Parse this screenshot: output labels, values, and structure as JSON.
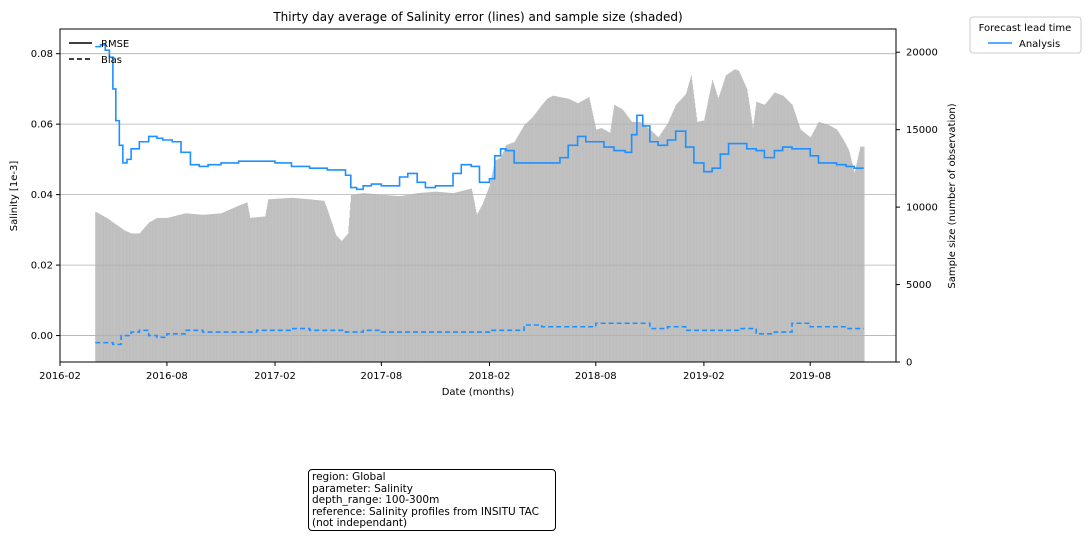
{
  "chart_data": {
    "type": "line",
    "title": "Thirty day average of Salinity error (lines) and sample size (shaded)",
    "xlabel": "Date (months)",
    "ylabel": "Salinity [1e-3]",
    "y2label": "Sample size (number of observation)",
    "xlim": [
      "2016-02-01",
      "2019-12-25"
    ],
    "ylim": [
      -0.0075,
      0.087
    ],
    "y2lim": [
      0,
      21500
    ],
    "x_ticks": [
      "2016-02",
      "2016-08",
      "2017-02",
      "2017-08",
      "2018-02",
      "2018-08",
      "2019-02",
      "2019-08"
    ],
    "y_ticks": [
      "0.00",
      "0.02",
      "0.04",
      "0.06",
      "0.08"
    ],
    "y2_ticks": [
      "0",
      "5000",
      "10000",
      "15000",
      "20000"
    ],
    "grid": true,
    "legend_style": {
      "position": "upper-left",
      "entries": [
        {
          "label": "RMSE",
          "linestyle": "solid",
          "color": "#000000"
        },
        {
          "label": "Bias",
          "linestyle": "dashed",
          "color": "#000000"
        }
      ]
    },
    "legend_lead": {
      "position": "outside-top-right",
      "title": "Forecast lead time",
      "entries": [
        {
          "label": "Analysis",
          "color": "#1e90ff"
        }
      ]
    },
    "series": [
      {
        "name": "RMSE",
        "color": "#1e90ff",
        "style": "solid",
        "x": [
          "2016-04-01",
          "2016-04-10",
          "2016-04-18",
          "2016-04-25",
          "2016-05-01",
          "2016-05-06",
          "2016-05-12",
          "2016-05-18",
          "2016-05-25",
          "2016-06-01",
          "2016-06-15",
          "2016-07-01",
          "2016-07-15",
          "2016-07-25",
          "2016-08-10",
          "2016-08-25",
          "2016-09-10",
          "2016-09-25",
          "2016-10-10",
          "2016-11-01",
          "2016-12-01",
          "2017-01-01",
          "2017-02-01",
          "2017-03-01",
          "2017-04-01",
          "2017-05-01",
          "2017-05-20",
          "2017-06-01",
          "2017-06-10",
          "2017-06-20",
          "2017-07-01",
          "2017-07-15",
          "2017-08-01",
          "2017-08-15",
          "2017-09-01",
          "2017-09-15",
          "2017-10-01",
          "2017-10-15",
          "2017-11-01",
          "2017-11-15",
          "2017-12-01",
          "2017-12-15",
          "2018-01-01",
          "2018-01-15",
          "2018-01-25",
          "2018-02-01",
          "2018-02-10",
          "2018-02-20",
          "2018-03-01",
          "2018-03-15",
          "2018-04-01",
          "2018-05-01",
          "2018-06-01",
          "2018-06-15",
          "2018-07-01",
          "2018-07-15",
          "2018-08-01",
          "2018-08-15",
          "2018-09-01",
          "2018-09-20",
          "2018-10-01",
          "2018-10-10",
          "2018-10-20",
          "2018-11-01",
          "2018-11-15",
          "2018-12-01",
          "2018-12-15",
          "2019-01-01",
          "2019-01-15",
          "2019-02-01",
          "2019-02-15",
          "2019-03-01",
          "2019-03-15",
          "2019-04-01",
          "2019-04-15",
          "2019-05-01",
          "2019-05-15",
          "2019-06-01",
          "2019-06-15",
          "2019-07-01",
          "2019-07-15",
          "2019-08-01",
          "2019-08-15",
          "2019-09-01",
          "2019-09-15",
          "2019-10-01",
          "2019-10-15",
          "2019-10-31"
        ],
        "values": [
          0.082,
          0.0825,
          0.081,
          0.079,
          0.07,
          0.061,
          0.054,
          0.049,
          0.05,
          0.053,
          0.055,
          0.0565,
          0.056,
          0.0555,
          0.055,
          0.052,
          0.0485,
          0.048,
          0.0485,
          0.049,
          0.0495,
          0.0495,
          0.049,
          0.048,
          0.0475,
          0.047,
          0.047,
          0.0455,
          0.042,
          0.0415,
          0.0425,
          0.043,
          0.0425,
          0.0425,
          0.045,
          0.046,
          0.0435,
          0.042,
          0.0425,
          0.0425,
          0.046,
          0.0485,
          0.048,
          0.0435,
          0.0435,
          0.0445,
          0.051,
          0.053,
          0.0525,
          0.049,
          0.049,
          0.049,
          0.0505,
          0.054,
          0.0565,
          0.055,
          0.055,
          0.0535,
          0.0525,
          0.052,
          0.057,
          0.0625,
          0.0595,
          0.055,
          0.054,
          0.0555,
          0.058,
          0.0535,
          0.049,
          0.0465,
          0.0475,
          0.0515,
          0.0545,
          0.0545,
          0.053,
          0.0525,
          0.0505,
          0.0525,
          0.0535,
          0.053,
          0.053,
          0.051,
          0.049,
          0.049,
          0.0485,
          0.048,
          0.0475,
          0.0475
        ]
      },
      {
        "name": "Bias",
        "color": "#1e90ff",
        "style": "dashed",
        "x": [
          "2016-04-01",
          "2016-05-01",
          "2016-05-15",
          "2016-06-01",
          "2016-06-15",
          "2016-07-01",
          "2016-07-15",
          "2016-08-01",
          "2016-09-01",
          "2016-10-01",
          "2016-11-01",
          "2016-12-01",
          "2017-01-01",
          "2017-02-01",
          "2017-03-01",
          "2017-04-01",
          "2017-05-01",
          "2017-06-01",
          "2017-07-01",
          "2017-08-01",
          "2017-09-01",
          "2017-10-01",
          "2017-11-01",
          "2017-12-01",
          "2018-01-01",
          "2018-02-01",
          "2018-03-01",
          "2018-04-01",
          "2018-05-01",
          "2018-06-01",
          "2018-07-01",
          "2018-08-01",
          "2018-09-01",
          "2018-10-01",
          "2018-11-01",
          "2018-12-01",
          "2019-01-01",
          "2019-02-01",
          "2019-03-01",
          "2019-04-01",
          "2019-05-01",
          "2019-06-01",
          "2019-07-01",
          "2019-08-01",
          "2019-09-01",
          "2019-10-01",
          "2019-10-31"
        ],
        "values": [
          -0.002,
          -0.0025,
          0.0,
          0.001,
          0.0015,
          0.0,
          -0.0005,
          0.0005,
          0.0015,
          0.001,
          0.001,
          0.001,
          0.0015,
          0.0015,
          0.002,
          0.0015,
          0.0015,
          0.001,
          0.0015,
          0.001,
          0.001,
          0.001,
          0.001,
          0.001,
          0.001,
          0.0015,
          0.0015,
          0.003,
          0.0025,
          0.0025,
          0.0025,
          0.0035,
          0.0035,
          0.0035,
          0.002,
          0.0025,
          0.0015,
          0.0015,
          0.0015,
          0.002,
          0.0005,
          0.001,
          0.0035,
          0.0025,
          0.0025,
          0.002,
          0.002
        ]
      },
      {
        "name": "Sample size",
        "axis": "y2",
        "color": "#bfbfbf",
        "style": "shaded",
        "x": [
          "2016-04-01",
          "2016-04-20",
          "2016-05-05",
          "2016-05-20",
          "2016-06-01",
          "2016-06-15",
          "2016-07-01",
          "2016-07-15",
          "2016-08-01",
          "2016-09-01",
          "2016-10-01",
          "2016-11-01",
          "2016-12-01",
          "2016-12-15",
          "2016-12-20",
          "2017-01-15",
          "2017-01-20",
          "2017-03-01",
          "2017-04-01",
          "2017-04-25",
          "2017-05-01",
          "2017-05-15",
          "2017-05-25",
          "2017-06-05",
          "2017-06-10",
          "2017-07-01",
          "2017-08-01",
          "2017-09-01",
          "2017-10-01",
          "2017-11-01",
          "2017-12-01",
          "2018-01-01",
          "2018-01-10",
          "2018-01-20",
          "2018-02-01",
          "2018-02-10",
          "2018-02-20",
          "2018-03-01",
          "2018-03-15",
          "2018-04-01",
          "2018-04-15",
          "2018-05-01",
          "2018-05-10",
          "2018-05-20",
          "2018-06-01",
          "2018-06-15",
          "2018-07-01",
          "2018-07-20",
          "2018-08-01",
          "2018-08-10",
          "2018-08-25",
          "2018-09-01",
          "2018-09-15",
          "2018-10-01",
          "2018-10-15",
          "2018-11-01",
          "2018-11-15",
          "2018-12-01",
          "2018-12-15",
          "2019-01-01",
          "2019-01-10",
          "2019-01-20",
          "2019-02-01",
          "2019-02-15",
          "2019-02-25",
          "2019-03-10",
          "2019-03-25",
          "2019-04-01",
          "2019-04-15",
          "2019-04-25",
          "2019-05-01",
          "2019-05-15",
          "2019-06-01",
          "2019-06-15",
          "2019-07-01",
          "2019-07-15",
          "2019-08-01",
          "2019-08-15",
          "2019-09-01",
          "2019-09-15",
          "2019-09-25",
          "2019-10-05",
          "2019-10-15",
          "2019-10-25",
          "2019-10-31"
        ],
        "values": [
          9700,
          9300,
          8900,
          8500,
          8300,
          8300,
          9000,
          9300,
          9300,
          9600,
          9500,
          9600,
          10100,
          10300,
          9300,
          9400,
          10500,
          10600,
          10500,
          10400,
          9800,
          8200,
          7800,
          8300,
          10800,
          10900,
          10800,
          10700,
          10900,
          11000,
          10900,
          11200,
          9500,
          10200,
          11400,
          13000,
          13200,
          14000,
          14200,
          15300,
          15800,
          16600,
          17000,
          17200,
          17100,
          17000,
          16700,
          17100,
          15000,
          15100,
          14800,
          16600,
          16300,
          15500,
          15500,
          15000,
          14500,
          15400,
          16600,
          17300,
          18500,
          15500,
          15600,
          18200,
          17000,
          18500,
          18900,
          18800,
          17600,
          15100,
          16800,
          16600,
          17400,
          17200,
          16600,
          15000,
          14500,
          15500,
          15300,
          15000,
          14400,
          13700,
          12200,
          13900,
          13900
        ]
      }
    ],
    "info_box": [
      "region: Global",
      "parameter: Salinity",
      "depth_range: 100-300m",
      "reference: Salinity profiles from INSITU TAC",
      "(not independant)"
    ]
  }
}
